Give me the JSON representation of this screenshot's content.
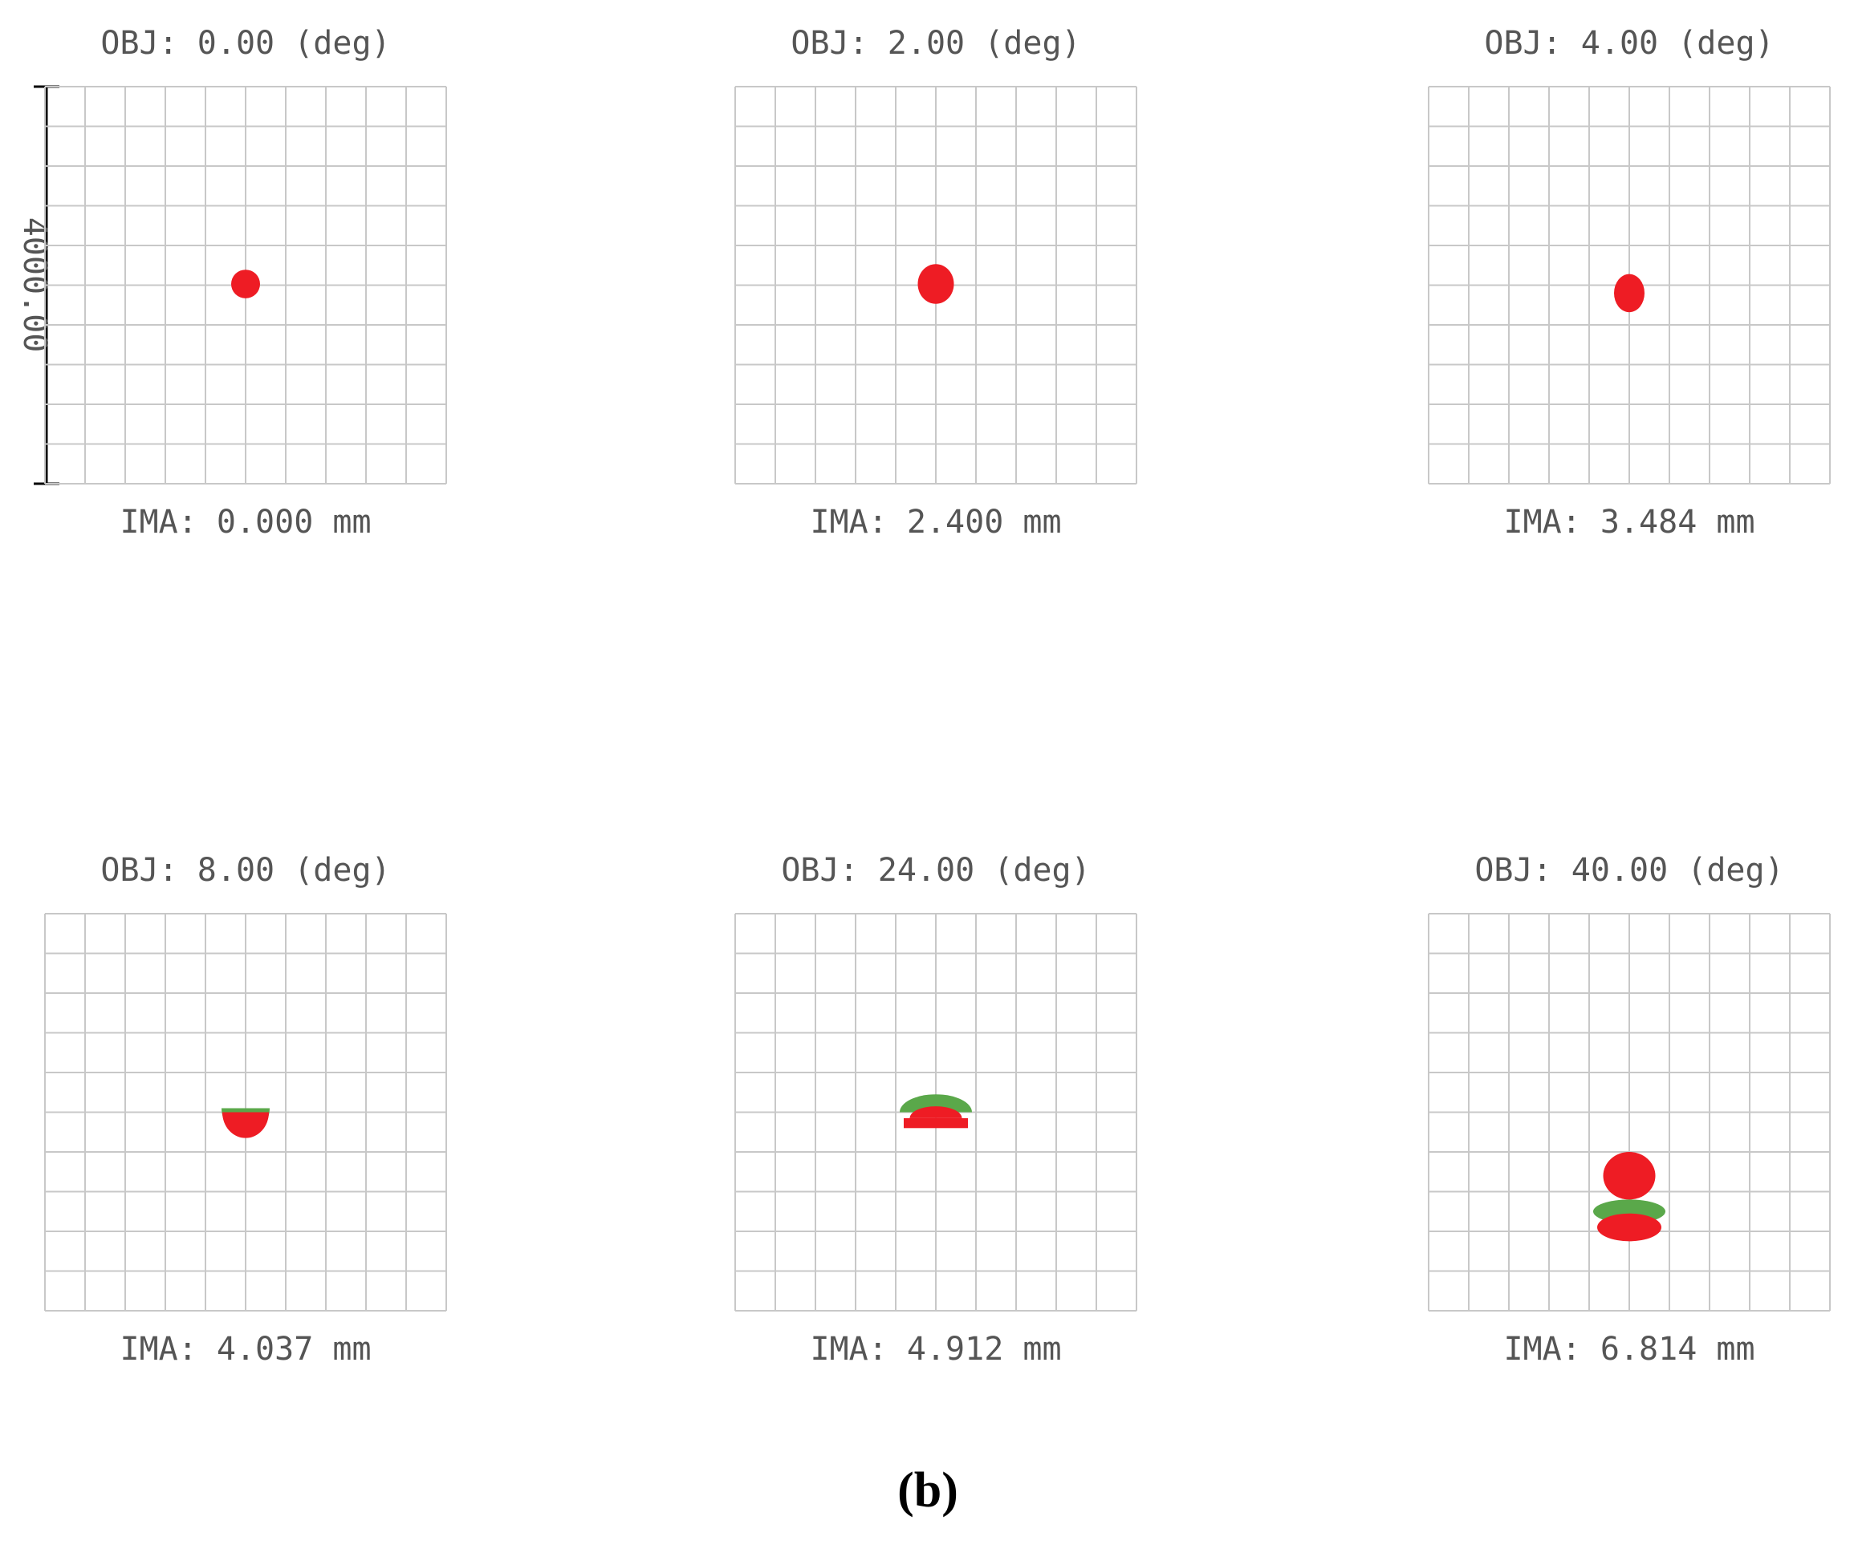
{
  "panels": [
    {
      "obj": "OBJ: 0.00 (deg)",
      "ima": "IMA: 0.000 mm"
    },
    {
      "obj": "OBJ: 2.00 (deg)",
      "ima": "IMA: 2.400 mm"
    },
    {
      "obj": "OBJ: 4.00 (deg)",
      "ima": "IMA: 3.484 mm"
    },
    {
      "obj": "OBJ: 8.00 (deg)",
      "ima": "IMA: 4.037 mm"
    },
    {
      "obj": "OBJ: 24.00 (deg)",
      "ima": "IMA: 4.912 mm"
    },
    {
      "obj": "OBJ: 40.00 (deg)",
      "ima": "IMA: 6.814 mm"
    }
  ],
  "scale": "4000.00",
  "caption": "(b)"
}
